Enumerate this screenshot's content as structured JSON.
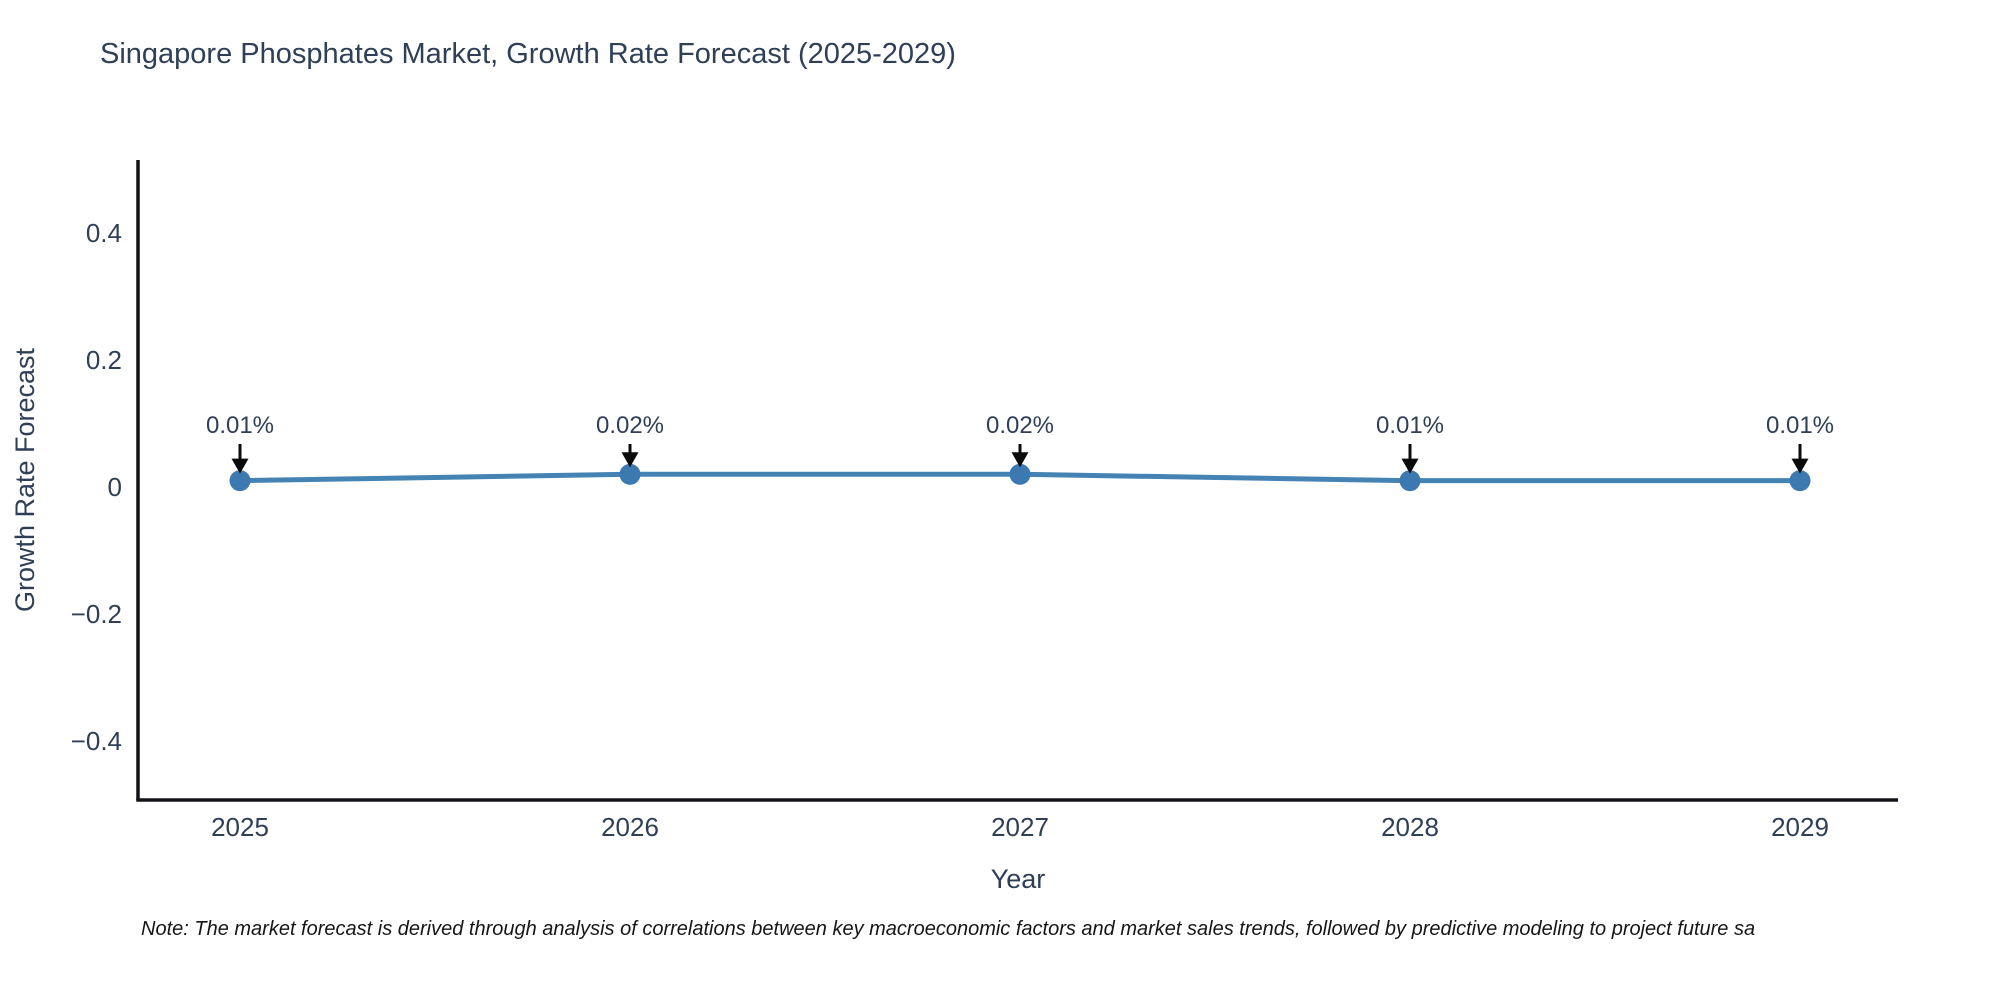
{
  "title": "Singapore Phosphates Market, Growth Rate Forecast (2025-2029)",
  "note": "Note: The market forecast is derived through analysis of correlations between key macroeconomic factors and market sales trends, followed by predictive modeling to project future sa",
  "colors": {
    "line": "#4583b5",
    "marker": "#3b79b0",
    "axis_line": "#111318",
    "text": "#2e3f56",
    "arrow": "#0b0b0b",
    "note_text": "#161616",
    "background": "#ffffff"
  },
  "chart_data": {
    "type": "line",
    "title": "Singapore Phosphates Market, Growth Rate Forecast (2025-2029)",
    "xlabel": "Year",
    "ylabel": "Growth Rate Forecast",
    "categories": [
      "2025",
      "2026",
      "2027",
      "2028",
      "2029"
    ],
    "x": [
      2025,
      2026,
      2027,
      2028,
      2029
    ],
    "values": [
      0.01,
      0.02,
      0.02,
      0.01,
      0.01
    ],
    "point_labels": [
      "0.01%",
      "0.02%",
      "0.02%",
      "0.01%",
      "0.01%"
    ],
    "y_ticks": [
      0.4,
      0.2,
      0,
      -0.2,
      -0.4
    ],
    "y_tick_labels": [
      "0.4",
      "0.2",
      "0",
      "−0.2",
      "−0.4"
    ],
    "ylim": [
      -0.49,
      0.52
    ],
    "grid": false,
    "legend_position": "none",
    "annotation_style": "value labels with downward arrows above each point"
  }
}
